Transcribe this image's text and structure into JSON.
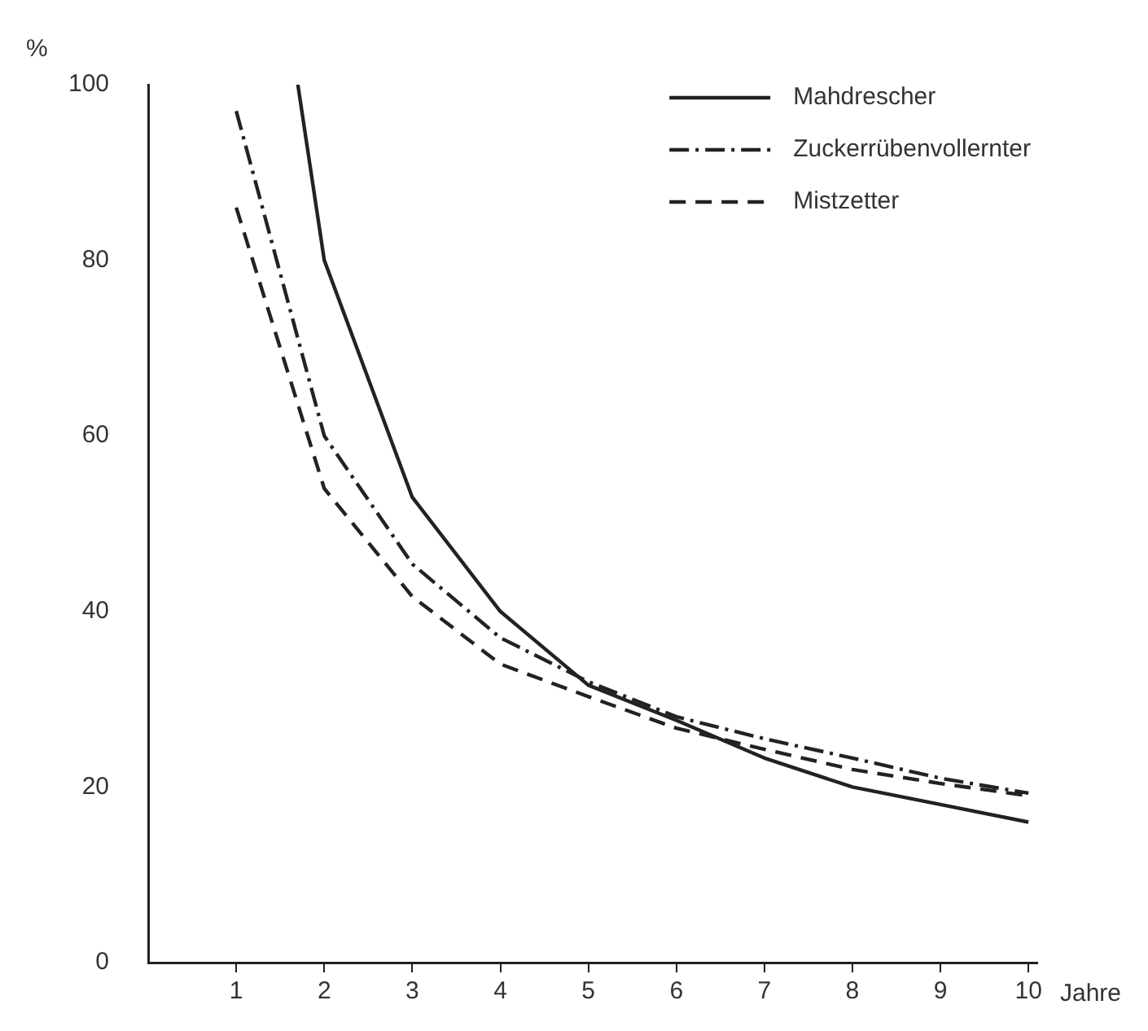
{
  "chart_data": {
    "type": "line",
    "xlabel": "Jahre",
    "ylabel": "%",
    "x": [
      1,
      2,
      3,
      4,
      5,
      6,
      7,
      8,
      9,
      10
    ],
    "xlim": [
      0,
      10.1
    ],
    "xticks": [
      1,
      2,
      3,
      4,
      5,
      6,
      7,
      8,
      9,
      10
    ],
    "ylim": [
      0,
      100
    ],
    "yticks": [
      0,
      20,
      40,
      60,
      80,
      100
    ],
    "grid": false,
    "legend": "top right",
    "marker": "none",
    "series": [
      {
        "name": "Mahdrescher",
        "color": "#222222",
        "line_style": "solid",
        "x": [
          1.7,
          2,
          3,
          4,
          5,
          6,
          7,
          8,
          9,
          10
        ],
        "values": [
          100,
          80,
          53,
          40,
          31.6,
          27.6,
          23.3,
          20,
          18,
          16
        ]
      },
      {
        "name": "Zuckerrübenvollernter",
        "color": "#222222",
        "line_style": "dashdot",
        "values": [
          97,
          60,
          45.4,
          37,
          32,
          28,
          25.5,
          23.3,
          21,
          19.3
        ]
      },
      {
        "name": "Mistzetter",
        "color": "#222222",
        "line_style": "dashed",
        "values": [
          86,
          54,
          41.7,
          34,
          30.3,
          26.7,
          24.3,
          22,
          20.4,
          19
        ]
      }
    ]
  }
}
